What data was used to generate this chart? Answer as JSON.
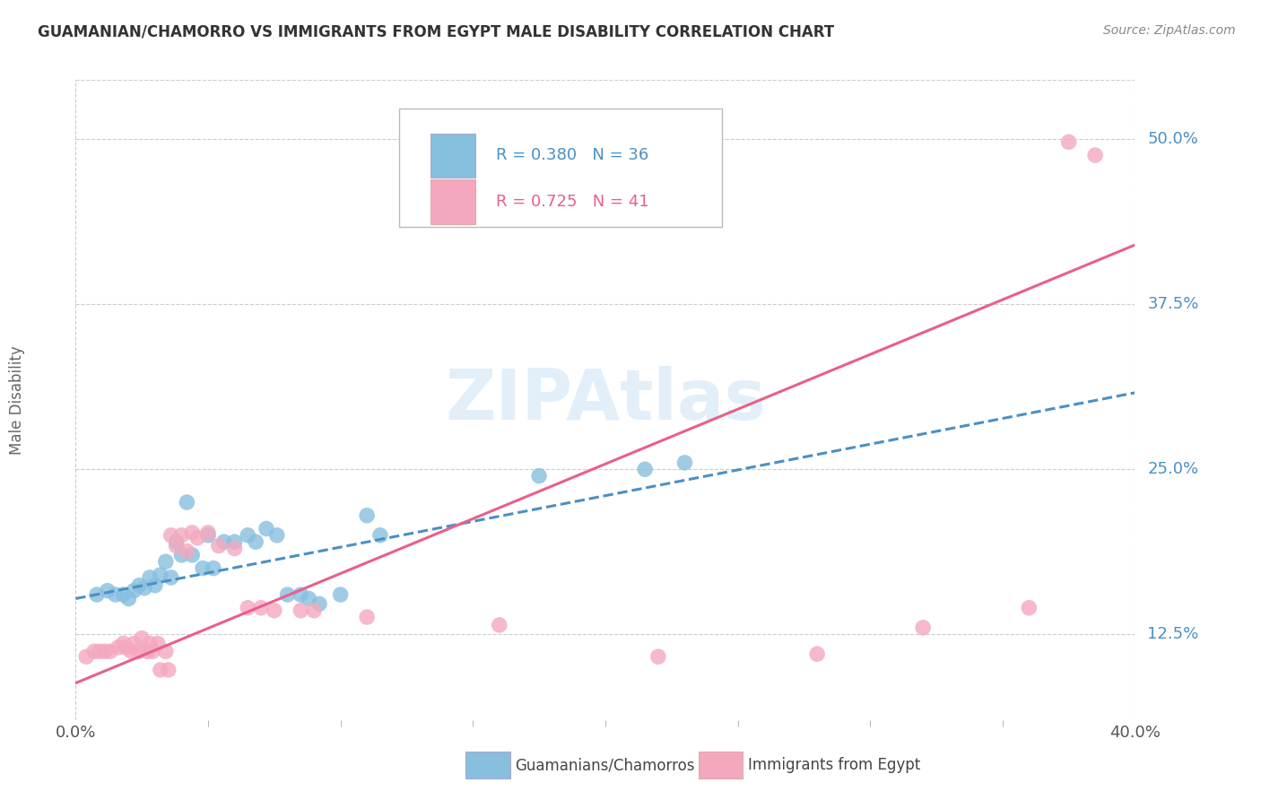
{
  "title": "GUAMANIAN/CHAMORRO VS IMMIGRANTS FROM EGYPT MALE DISABILITY CORRELATION CHART",
  "source": "Source: ZipAtlas.com",
  "ylabel": "Male Disability",
  "ytick_labels": [
    "12.5%",
    "25.0%",
    "37.5%",
    "50.0%"
  ],
  "ytick_values": [
    0.125,
    0.25,
    0.375,
    0.5
  ],
  "xlim": [
    0.0,
    0.4
  ],
  "ylim": [
    0.06,
    0.545
  ],
  "legend_blue_r": "R = 0.380",
  "legend_blue_n": "N = 36",
  "legend_pink_r": "R = 0.725",
  "legend_pink_n": "N = 41",
  "watermark": "ZIPAtlas",
  "blue_color": "#87bfdf",
  "pink_color": "#f4a8be",
  "blue_line_color": "#4a90c4",
  "pink_line_color": "#e8608a",
  "blue_scatter": [
    [
      0.008,
      0.155
    ],
    [
      0.012,
      0.158
    ],
    [
      0.015,
      0.155
    ],
    [
      0.018,
      0.155
    ],
    [
      0.02,
      0.152
    ],
    [
      0.022,
      0.158
    ],
    [
      0.024,
      0.162
    ],
    [
      0.026,
      0.16
    ],
    [
      0.028,
      0.168
    ],
    [
      0.03,
      0.162
    ],
    [
      0.032,
      0.17
    ],
    [
      0.034,
      0.18
    ],
    [
      0.036,
      0.168
    ],
    [
      0.038,
      0.195
    ],
    [
      0.04,
      0.185
    ],
    [
      0.042,
      0.225
    ],
    [
      0.044,
      0.185
    ],
    [
      0.048,
      0.175
    ],
    [
      0.05,
      0.2
    ],
    [
      0.052,
      0.175
    ],
    [
      0.056,
      0.195
    ],
    [
      0.06,
      0.195
    ],
    [
      0.065,
      0.2
    ],
    [
      0.068,
      0.195
    ],
    [
      0.072,
      0.205
    ],
    [
      0.076,
      0.2
    ],
    [
      0.08,
      0.155
    ],
    [
      0.085,
      0.155
    ],
    [
      0.088,
      0.152
    ],
    [
      0.092,
      0.148
    ],
    [
      0.1,
      0.155
    ],
    [
      0.11,
      0.215
    ],
    [
      0.115,
      0.2
    ],
    [
      0.175,
      0.245
    ],
    [
      0.215,
      0.25
    ],
    [
      0.23,
      0.255
    ]
  ],
  "pink_scatter": [
    [
      0.004,
      0.108
    ],
    [
      0.007,
      0.112
    ],
    [
      0.009,
      0.112
    ],
    [
      0.011,
      0.112
    ],
    [
      0.013,
      0.112
    ],
    [
      0.016,
      0.115
    ],
    [
      0.018,
      0.118
    ],
    [
      0.019,
      0.115
    ],
    [
      0.021,
      0.112
    ],
    [
      0.022,
      0.118
    ],
    [
      0.024,
      0.112
    ],
    [
      0.025,
      0.122
    ],
    [
      0.027,
      0.112
    ],
    [
      0.028,
      0.118
    ],
    [
      0.029,
      0.112
    ],
    [
      0.031,
      0.118
    ],
    [
      0.032,
      0.098
    ],
    [
      0.034,
      0.112
    ],
    [
      0.035,
      0.098
    ],
    [
      0.036,
      0.2
    ],
    [
      0.038,
      0.192
    ],
    [
      0.04,
      0.2
    ],
    [
      0.042,
      0.188
    ],
    [
      0.044,
      0.202
    ],
    [
      0.046,
      0.198
    ],
    [
      0.05,
      0.202
    ],
    [
      0.054,
      0.192
    ],
    [
      0.06,
      0.19
    ],
    [
      0.065,
      0.145
    ],
    [
      0.07,
      0.145
    ],
    [
      0.075,
      0.143
    ],
    [
      0.085,
      0.143
    ],
    [
      0.09,
      0.143
    ],
    [
      0.11,
      0.138
    ],
    [
      0.16,
      0.132
    ],
    [
      0.22,
      0.108
    ],
    [
      0.28,
      0.11
    ],
    [
      0.32,
      0.13
    ],
    [
      0.36,
      0.145
    ],
    [
      0.375,
      0.498
    ],
    [
      0.385,
      0.488
    ]
  ],
  "blue_line": {
    "x0": 0.0,
    "y0": 0.152,
    "x1": 0.4,
    "y1": 0.308
  },
  "pink_line": {
    "x0": 0.0,
    "y0": 0.088,
    "x1": 0.4,
    "y1": 0.42
  },
  "x_label_ticks": [
    0.0,
    0.4
  ],
  "x_label_texts": [
    "0.0%",
    "40.0%"
  ],
  "x_minor_ticks": [
    0.05,
    0.1,
    0.15,
    0.2,
    0.25,
    0.3,
    0.35
  ],
  "background_color": "#ffffff",
  "grid_color": "#cccccc",
  "border_color": "#cccccc"
}
